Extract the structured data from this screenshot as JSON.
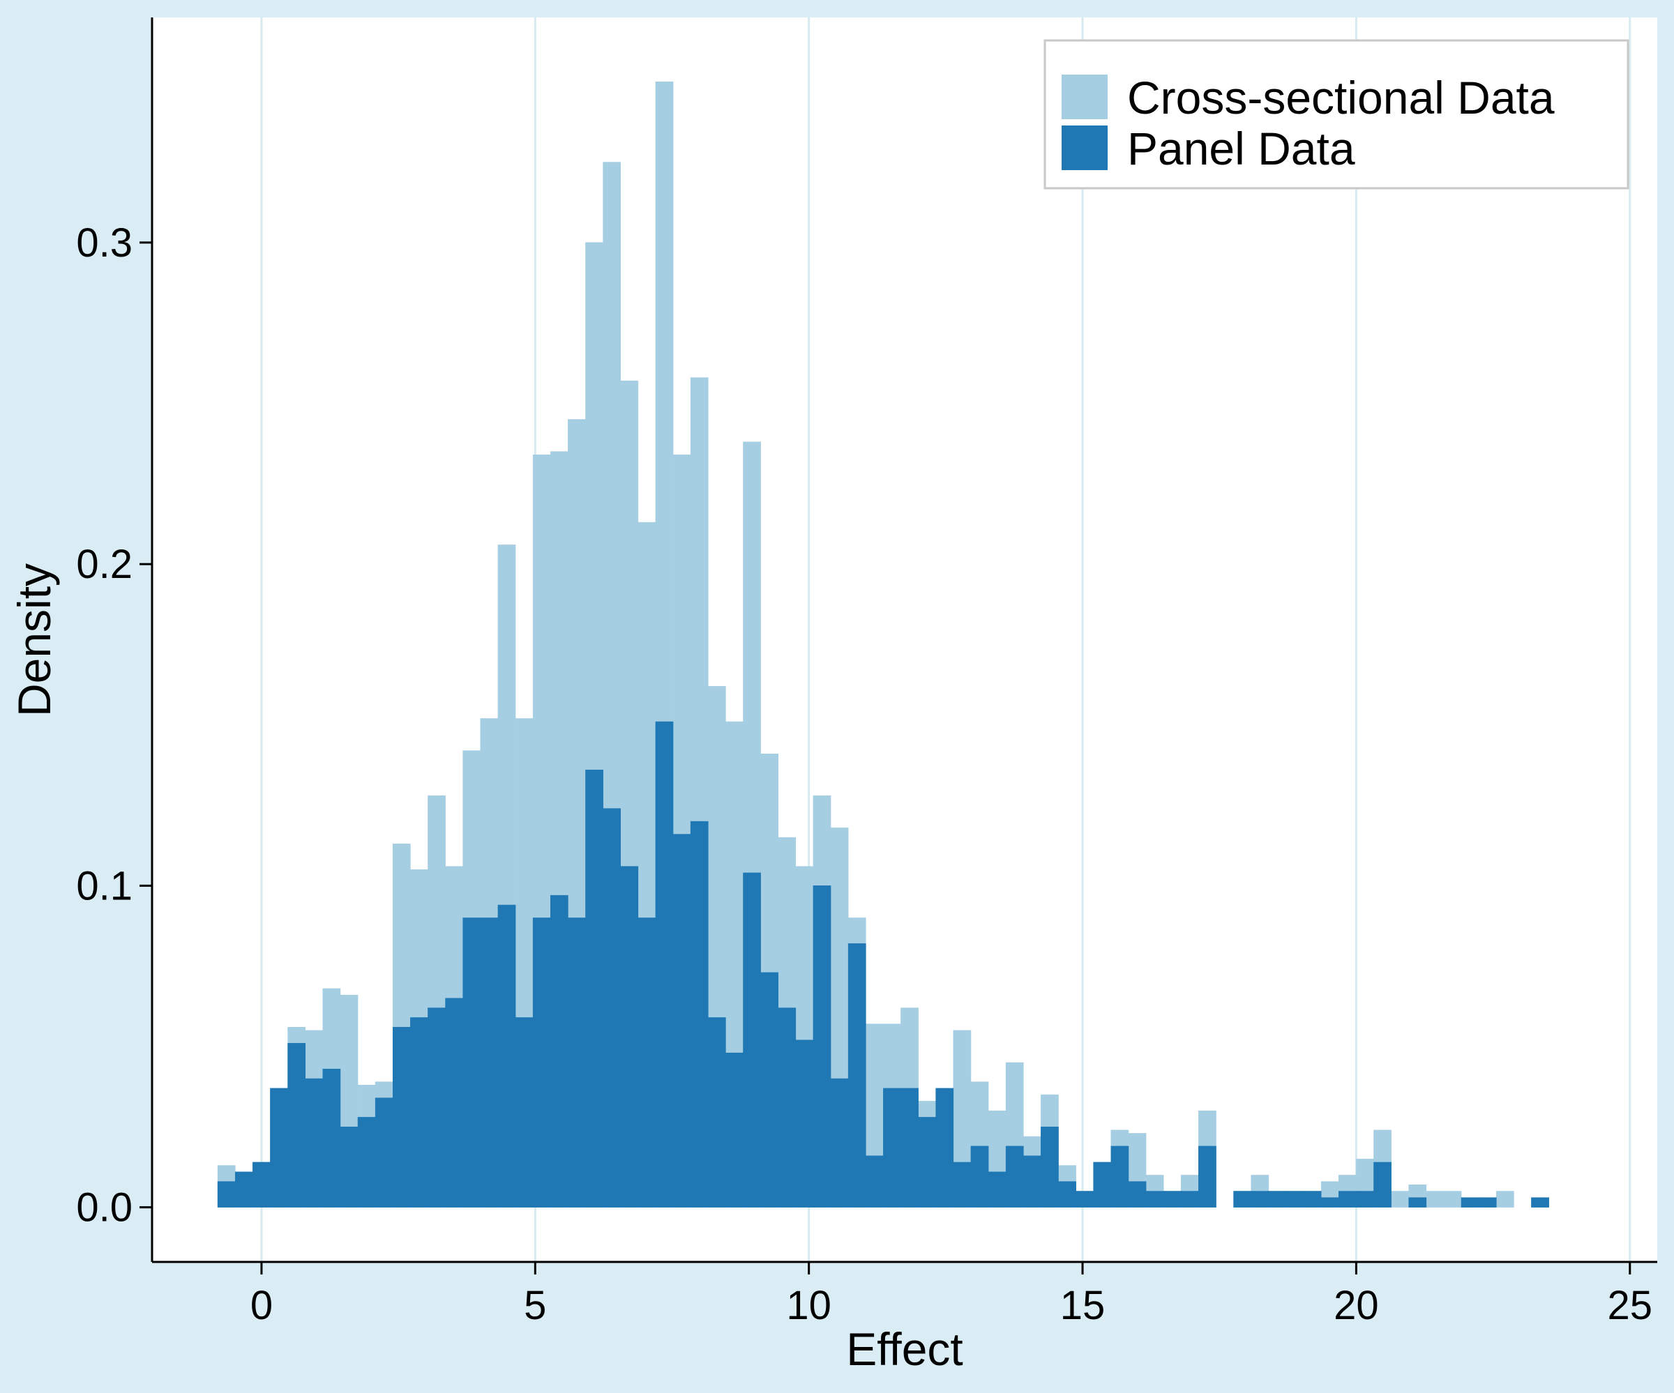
{
  "colors": {
    "frame": "#daedf4",
    "plot_background": "#ffffff",
    "gridline": "#d6eaf0",
    "cross_sectional": "#a6cee3",
    "panel": "#1f78b4",
    "axis": "#000000"
  },
  "chart_data": {
    "type": "bar",
    "subtype": "overlaid-histogram",
    "xlabel": "Effect",
    "ylabel": "Density",
    "xlim": [
      -2,
      25.5
    ],
    "ylim": [
      -0.017,
      0.37
    ],
    "xticks": [
      0,
      5,
      10,
      15,
      20,
      25
    ],
    "yticks": [
      0.0,
      0.1,
      0.2,
      0.3
    ],
    "ytick_labels": [
      "0.0",
      "0.1",
      "0.2",
      "0.3"
    ],
    "vertical_grid": true,
    "legend": {
      "position": "top-right",
      "entries": [
        "Cross-sectional Data",
        "Panel Data"
      ]
    },
    "bins": {
      "start": -0.8,
      "width": 0.32,
      "count": 98
    },
    "series": [
      {
        "name": "Cross-sectional Data",
        "values": [
          0.013,
          0.011,
          0.014,
          0.037,
          0.056,
          0.055,
          0.068,
          0.066,
          0.038,
          0.039,
          0.113,
          0.105,
          0.128,
          0.106,
          0.142,
          0.152,
          0.206,
          0.152,
          0.234,
          0.235,
          0.245,
          0.3,
          0.325,
          0.257,
          0.213,
          0.35,
          0.234,
          0.258,
          0.162,
          0.151,
          0.238,
          0.141,
          0.115,
          0.106,
          0.128,
          0.118,
          0.09,
          0.057,
          0.057,
          0.062,
          0.033,
          0.035,
          0.055,
          0.039,
          0.03,
          0.045,
          0.022,
          0.035,
          0.013,
          0.005,
          0.014,
          0.024,
          0.023,
          0.01,
          0.005,
          0.01,
          0.03,
          0,
          0.005,
          0.01,
          0.005,
          0.005,
          0.005,
          0.008,
          0.01,
          0.015,
          0.024,
          0.005,
          0.007,
          0.005,
          0.005,
          0.003,
          0.003,
          0.005,
          0,
          0.003
        ],
        "note_bins": "values continue beyond index 75 are zero"
      },
      {
        "name": "Panel Data",
        "values": [
          0.008,
          0.011,
          0.014,
          0.037,
          0.051,
          0.04,
          0.043,
          0.025,
          0.028,
          0.034,
          0.056,
          0.059,
          0.062,
          0.065,
          0.09,
          0.09,
          0.094,
          0.059,
          0.09,
          0.097,
          0.09,
          0.136,
          0.124,
          0.106,
          0.09,
          0.151,
          0.116,
          0.12,
          0.059,
          0.048,
          0.104,
          0.073,
          0.062,
          0.052,
          0.1,
          0.04,
          0.082,
          0.016,
          0.037,
          0.037,
          0.028,
          0.037,
          0.014,
          0.019,
          0.011,
          0.019,
          0.016,
          0.025,
          0.008,
          0.005,
          0.014,
          0.019,
          0.008,
          0.005,
          0.005,
          0.005,
          0.019,
          0,
          0.005,
          0.005,
          0.005,
          0.005,
          0.005,
          0.003,
          0.005,
          0.005,
          0.014,
          0,
          0.003,
          0,
          0,
          0.003,
          0.003,
          0,
          0,
          0.003
        ]
      }
    ]
  }
}
